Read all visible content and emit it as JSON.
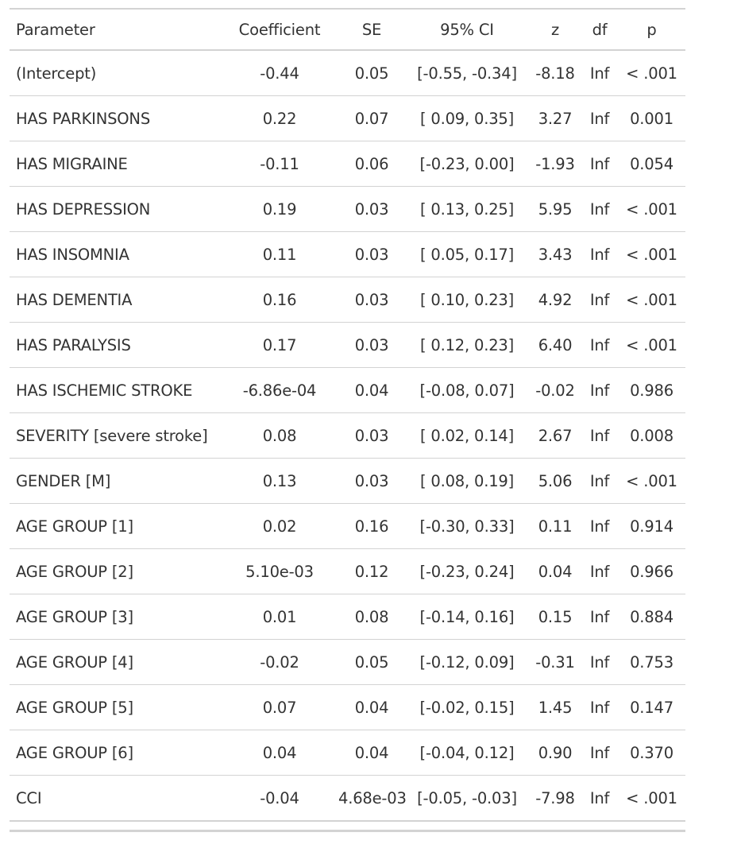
{
  "table": {
    "headers": [
      "Parameter",
      "Coefficient",
      "SE",
      "95% CI",
      "z",
      "df",
      "p"
    ],
    "rows": [
      [
        "(Intercept)",
        "-0.44",
        "0.05",
        "[-0.55, -0.34]",
        "-8.18",
        "Inf",
        "< .001"
      ],
      [
        "HAS PARKINSONS",
        "0.22",
        "0.07",
        "[ 0.09, 0.35]",
        "3.27",
        "Inf",
        "0.001"
      ],
      [
        "HAS MIGRAINE",
        "-0.11",
        "0.06",
        "[-0.23, 0.00]",
        "-1.93",
        "Inf",
        "0.054"
      ],
      [
        "HAS DEPRESSION",
        "0.19",
        "0.03",
        "[ 0.13, 0.25]",
        "5.95",
        "Inf",
        "< .001"
      ],
      [
        "HAS INSOMNIA",
        "0.11",
        "0.03",
        "[ 0.05, 0.17]",
        "3.43",
        "Inf",
        "< .001"
      ],
      [
        "HAS DEMENTIA",
        "0.16",
        "0.03",
        "[ 0.10, 0.23]",
        "4.92",
        "Inf",
        "< .001"
      ],
      [
        "HAS PARALYSIS",
        "0.17",
        "0.03",
        "[ 0.12, 0.23]",
        "6.40",
        "Inf",
        "< .001"
      ],
      [
        "HAS ISCHEMIC STROKE",
        "-6.86e-04",
        "0.04",
        "[-0.08, 0.07]",
        "-0.02",
        "Inf",
        "0.986"
      ],
      [
        "SEVERITY [severe stroke]",
        "0.08",
        "0.03",
        "[ 0.02, 0.14]",
        "2.67",
        "Inf",
        "0.008"
      ],
      [
        "GENDER [M]",
        "0.13",
        "0.03",
        "[ 0.08, 0.19]",
        "5.06",
        "Inf",
        "< .001"
      ],
      [
        "AGE GROUP [1]",
        "0.02",
        "0.16",
        "[-0.30, 0.33]",
        "0.11",
        "Inf",
        "0.914"
      ],
      [
        "AGE GROUP [2]",
        "5.10e-03",
        "0.12",
        "[-0.23, 0.24]",
        "0.04",
        "Inf",
        "0.966"
      ],
      [
        "AGE GROUP [3]",
        "0.01",
        "0.08",
        "[-0.14, 0.16]",
        "0.15",
        "Inf",
        "0.884"
      ],
      [
        "AGE GROUP [4]",
        "-0.02",
        "0.05",
        "[-0.12, 0.09]",
        "-0.31",
        "Inf",
        "0.753"
      ],
      [
        "AGE GROUP [5]",
        "0.07",
        "0.04",
        "[-0.02, 0.15]",
        "1.45",
        "Inf",
        "0.147"
      ],
      [
        "AGE GROUP [6]",
        "0.04",
        "0.04",
        "[-0.04, 0.12]",
        "0.90",
        "Inf",
        "0.370"
      ],
      [
        "CCI",
        "-0.04",
        "4.68e-03",
        "[-0.05, -0.03]",
        "-7.98",
        "Inf",
        "< .001"
      ]
    ]
  }
}
